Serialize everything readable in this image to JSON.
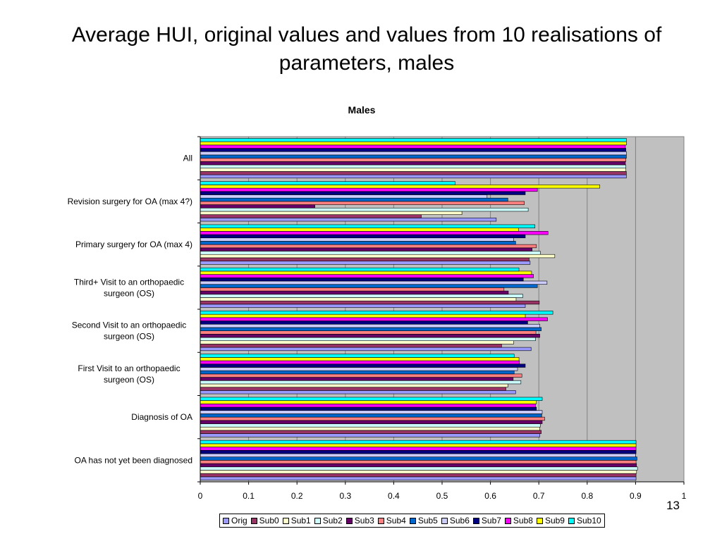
{
  "slide": {
    "title": "Average HUI, original values and values from 10 realisations of parameters, males",
    "page_number": "13"
  },
  "chart_data": {
    "type": "bar",
    "orientation": "horizontal",
    "title": "Males",
    "xlabel": "",
    "ylabel": "",
    "xlim": [
      0,
      1
    ],
    "x_ticks": [
      "0",
      "0.1",
      "0.2",
      "0.3",
      "0.4",
      "0.5",
      "0.6",
      "0.7",
      "0.8",
      "0.9",
      "1"
    ],
    "grid": "vertical",
    "legend_position": "bottom",
    "categories": [
      "All",
      "Revision surgery for OA (max 4?)",
      "Primary surgery for OA (max 4)",
      "Third+ Visit to an orthopaedic surgeon (OS)",
      "Second Visit to an orthopaedic surgeon (OS)",
      "First Visit to an orthopaedic surgeon (OS)",
      "Diagnosis of OA",
      "OA has not yet been diagnosed"
    ],
    "series": [
      {
        "name": "Orig",
        "color": "#9999ff",
        "values": [
          0.881,
          0.612,
          0.682,
          0.672,
          0.684,
          0.652,
          0.702,
          0.901
        ]
      },
      {
        "name": "Sub0",
        "color": "#993366",
        "values": [
          0.881,
          0.457,
          0.68,
          0.701,
          0.623,
          0.632,
          0.705,
          0.901
        ]
      },
      {
        "name": "Sub1",
        "color": "#ffffcc",
        "values": [
          0.88,
          0.541,
          0.733,
          0.653,
          0.648,
          0.636,
          0.702,
          0.902
        ]
      },
      {
        "name": "Sub2",
        "color": "#ccffff",
        "values": [
          0.88,
          0.678,
          0.703,
          0.667,
          0.693,
          0.663,
          0.703,
          0.904
        ]
      },
      {
        "name": "Sub3",
        "color": "#660066",
        "values": [
          0.879,
          0.237,
          0.686,
          0.637,
          0.702,
          0.647,
          0.707,
          0.902
        ]
      },
      {
        "name": "Sub4",
        "color": "#ff8080",
        "values": [
          0.88,
          0.67,
          0.695,
          0.628,
          0.694,
          0.665,
          0.712,
          0.901
        ]
      },
      {
        "name": "Sub5",
        "color": "#0066cc",
        "values": [
          0.881,
          0.636,
          0.652,
          0.697,
          0.705,
          0.649,
          0.706,
          0.903
        ]
      },
      {
        "name": "Sub6",
        "color": "#ccccff",
        "values": [
          0.881,
          0.593,
          0.648,
          0.717,
          0.702,
          0.656,
          0.707,
          0.9
        ]
      },
      {
        "name": "Sub7",
        "color": "#000080",
        "values": [
          0.88,
          0.672,
          0.672,
          0.668,
          0.677,
          0.672,
          0.695,
          0.901
        ]
      },
      {
        "name": "Sub8",
        "color": "#ff00ff",
        "values": [
          0.879,
          0.697,
          0.719,
          0.689,
          0.718,
          0.66,
          0.693,
          0.901
        ]
      },
      {
        "name": "Sub9",
        "color": "#ffff00",
        "values": [
          0.881,
          0.826,
          0.658,
          0.685,
          0.672,
          0.659,
          0.695,
          0.901
        ]
      },
      {
        "name": "Sub10",
        "color": "#00ffff",
        "values": [
          0.881,
          0.527,
          0.692,
          0.659,
          0.729,
          0.649,
          0.707,
          0.901
        ]
      }
    ]
  }
}
